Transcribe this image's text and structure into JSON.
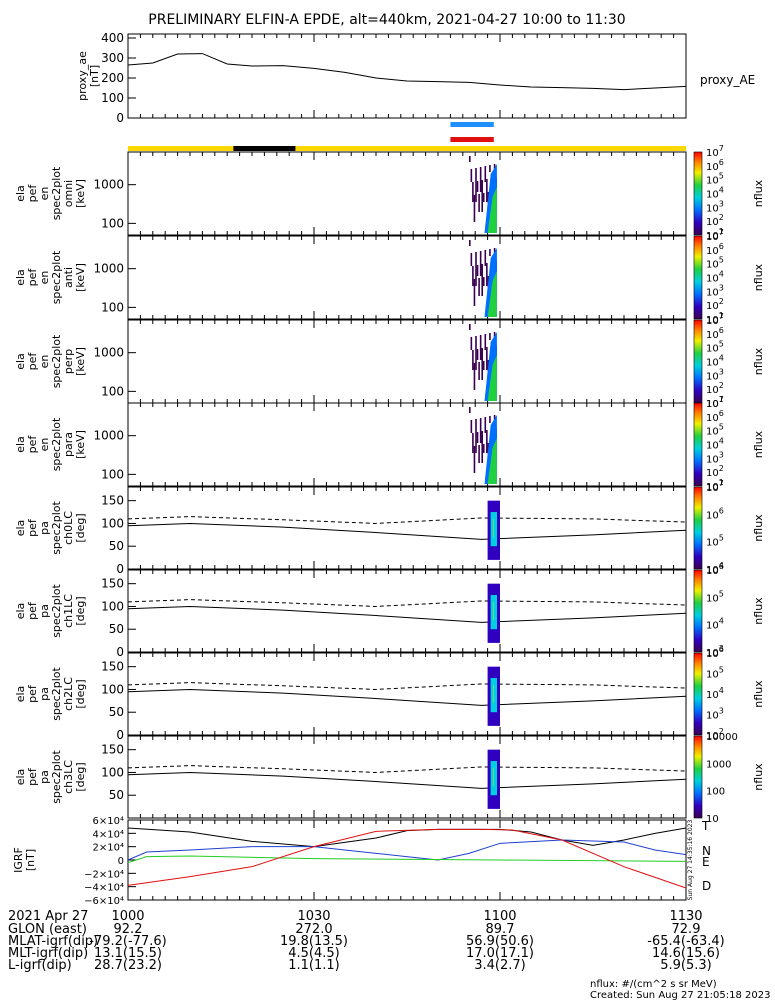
{
  "title": "PRELIMINARY ELFIN-A EPDE, alt=440km, 2021-04-27 10:00 to 11:30",
  "x_range": [
    "10:00",
    "11:30"
  ],
  "ae_panel": {
    "ylabel": "proxy_ae\n[nT]",
    "legend": "proxy_AE",
    "yticks": [
      "0",
      "100",
      "200",
      "300",
      "400"
    ],
    "ylim": [
      0,
      420
    ]
  },
  "bars": {
    "blue_interval": [
      "10:52",
      "10:59"
    ],
    "red_interval": [
      "10:52",
      "10:59"
    ],
    "yellow_color": "#ffd700",
    "black_interval": [
      "10:17",
      "10:27"
    ]
  },
  "spectrogram_panels": [
    {
      "ylabel": "ela\npef\nen\nspec2plot\nomni\n[keV]",
      "yticks": [
        "100",
        "1000"
      ],
      "cbar_ticks": [
        "10^1",
        "10^2",
        "10^3",
        "10^4",
        "10^5",
        "10^6",
        "10^7"
      ],
      "cbar_label": "nflux"
    },
    {
      "ylabel": "ela\npef\nen\nspec2plot\nanti\n[keV]",
      "yticks": [
        "100",
        "1000"
      ],
      "cbar_ticks": [
        "10^1",
        "10^2",
        "10^3",
        "10^4",
        "10^5",
        "10^6",
        "10^7"
      ],
      "cbar_label": "nflux"
    },
    {
      "ylabel": "ela\npef\nen\nspec2plot\nperp\n[keV]",
      "yticks": [
        "100",
        "1000"
      ],
      "cbar_ticks": [
        "10^1",
        "10^2",
        "10^3",
        "10^4",
        "10^5",
        "10^6",
        "10^7"
      ],
      "cbar_label": "nflux"
    },
    {
      "ylabel": "ela\npef\nen\nspec2plot\npara\n[keV]",
      "yticks": [
        "100",
        "1000"
      ],
      "cbar_ticks": [
        "10^1",
        "10^2",
        "10^3",
        "10^4",
        "10^5",
        "10^6",
        "10^7"
      ],
      "cbar_label": "nflux"
    }
  ],
  "pitch_panels": [
    {
      "ylabel": "ela\npef\npa\nspec2plot\nch0LC\n[deg]",
      "yticks": [
        "0",
        "50",
        "100",
        "150"
      ],
      "cbar_ticks": [
        "10^4",
        "10^5",
        "10^6",
        "10^7"
      ],
      "cbar_label": "nflux"
    },
    {
      "ylabel": "ela\npef\npa\nspec2plot\nch1LC\n[deg]",
      "yticks": [
        "0",
        "50",
        "100",
        "150"
      ],
      "cbar_ticks": [
        "10^3",
        "10^4",
        "10^5",
        "10^6"
      ],
      "cbar_label": "nflux"
    },
    {
      "ylabel": "ela\npef\npa\nspec2plot\nch2LC\n[deg]",
      "yticks": [
        "0",
        "50",
        "100",
        "150"
      ],
      "cbar_ticks": [
        "10^2",
        "10^3",
        "10^4",
        "10^5",
        "10^6"
      ],
      "cbar_label": "nflux"
    },
    {
      "ylabel": "ela\npef\npa\nspec2plot\nch3LC\n[deg]",
      "yticks": [
        "50",
        "100",
        "150"
      ],
      "cbar_ticks": [
        "10",
        "100",
        "1000",
        "10000"
      ],
      "cbar_label": "nflux"
    }
  ],
  "igrf_panel": {
    "ylabel": "IGRF\n[nT]",
    "yticks": [
      "−6×10⁴",
      "−4×10⁴",
      "−2×10⁴",
      "0",
      "2×10⁴",
      "4×10⁴",
      "6×10⁴"
    ],
    "legend": [
      {
        "label": "T",
        "color": "#000000"
      },
      {
        "label": "N",
        "color": "#1f3fd0"
      },
      {
        "label": "E",
        "color": "#22cc22"
      },
      {
        "label": "D",
        "color": "#e01010"
      }
    ],
    "stamp": "Sun Aug 27 14:35:16 2023"
  },
  "chart_data": {
    "type": "line",
    "title": "PRELIMINARY ELFIN-A EPDE, alt=440km, 2021-04-27 10:00 to 11:30",
    "x_units": "time (UT, hhmm)",
    "xticks": [
      "1000",
      "1030",
      "1100",
      "1130"
    ],
    "series": [
      {
        "name": "proxy_AE",
        "x_minutes_after_1000": [
          0,
          4,
          8,
          12,
          16,
          20,
          25,
          30,
          35,
          40,
          45,
          50,
          55,
          60,
          65,
          70,
          75,
          80,
          85,
          90
        ],
        "values": [
          265,
          275,
          320,
          322,
          270,
          260,
          262,
          248,
          228,
          200,
          185,
          182,
          178,
          165,
          155,
          152,
          148,
          142,
          150,
          158
        ]
      },
      {
        "name": "T",
        "x_minutes_after_1000": [
          0,
          10,
          20,
          30,
          40,
          45,
          50,
          55,
          60,
          65,
          70,
          75,
          80,
          85,
          90
        ],
        "values": [
          48000,
          42000,
          28000,
          20000,
          33000,
          44000,
          46000,
          46000,
          46000,
          42000,
          30000,
          22000,
          30000,
          40000,
          48000
        ]
      },
      {
        "name": "N",
        "x_minutes_after_1000": [
          0,
          3,
          10,
          20,
          30,
          40,
          50,
          55,
          60,
          70,
          80,
          85,
          90
        ],
        "values": [
          0,
          12000,
          15000,
          20000,
          20000,
          10000,
          0,
          10000,
          25000,
          30000,
          27000,
          15000,
          8000
        ]
      },
      {
        "name": "E",
        "x_minutes_after_1000": [
          0,
          3,
          10,
          30,
          60,
          90
        ],
        "values": [
          -4000,
          5000,
          6000,
          2000,
          0,
          -2000
        ]
      },
      {
        "name": "D",
        "x_minutes_after_1000": [
          0,
          10,
          20,
          30,
          40,
          50,
          57,
          62,
          70,
          80,
          90
        ],
        "values": [
          -38000,
          -25000,
          -10000,
          20000,
          43000,
          46000,
          46000,
          45000,
          30000,
          -10000,
          -42000
        ]
      }
    ]
  },
  "footer": {
    "date": "2021 Apr 27",
    "xticks": [
      "1000",
      "1030",
      "1100",
      "1130"
    ],
    "rows": [
      {
        "label": "GLON (east)",
        "values": [
          "92.2",
          "272.0",
          "89.7",
          "72.9"
        ]
      },
      {
        "label": "MLAT-igrf(dip)",
        "values": [
          "-79.2(-77.6)",
          "19.8(13.5)",
          "56.9(50.6)",
          "-65.4(-63.4)"
        ]
      },
      {
        "label": "MLT-igrf(dip)",
        "values": [
          "13.1(15.5)",
          "4.5(4.5)",
          "17.0(17.1)",
          "14.6(15.6)"
        ]
      },
      {
        "label": "L-igrf(dip)",
        "values": [
          "28.7(23.2)",
          "1.1(1.1)",
          "3.4(2.7)",
          "5.9(5.3)"
        ]
      }
    ],
    "units_note": "nflux: #/(cm^2 s sr MeV)",
    "created": "Created: Sun Aug 27 21:05:18 2023"
  }
}
